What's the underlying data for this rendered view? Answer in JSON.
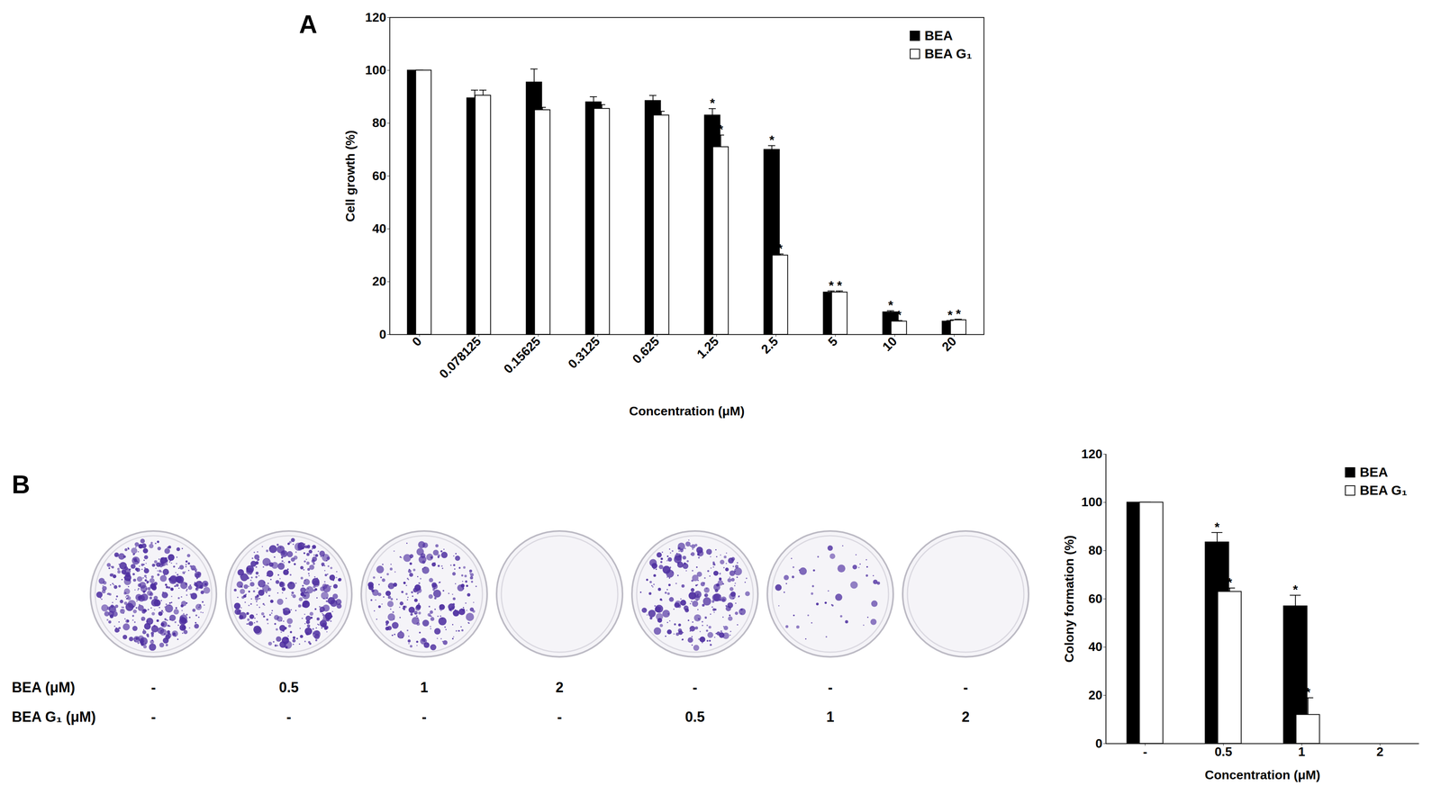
{
  "chart_data": [
    {
      "type": "bar",
      "panel": "A",
      "x_label": "Concentration (μM)",
      "y_label": "Cell growth (%)",
      "categories": [
        "0",
        "0.078125",
        "0.15625",
        "0.3125",
        "0.625",
        "1.25",
        "2.5",
        "5",
        "10",
        "20"
      ],
      "series": [
        {
          "name": "BEA",
          "color": "#000000",
          "values": [
            100,
            89.5,
            95.5,
            88,
            88.5,
            83,
            70,
            16,
            8.5,
            5
          ],
          "errors": [
            0,
            3,
            5,
            2,
            2,
            2.5,
            1.5,
            0.5,
            0.5,
            0.3
          ],
          "significant": [
            false,
            false,
            false,
            false,
            false,
            true,
            true,
            true,
            true,
            true
          ]
        },
        {
          "name": "BEA G₁",
          "color": "#ffffff",
          "values": [
            100,
            90.5,
            85,
            85.5,
            83,
            71,
            30,
            16,
            5,
            5.5
          ],
          "errors": [
            0,
            2,
            1,
            1.5,
            1.5,
            4.5,
            0.5,
            0.5,
            0.3,
            0.3
          ],
          "significant": [
            false,
            false,
            false,
            false,
            false,
            true,
            true,
            true,
            true,
            true
          ]
        }
      ],
      "annotation": "*",
      "ylim": [
        0,
        120
      ],
      "yticks": [
        0,
        20,
        40,
        60,
        80,
        100,
        120
      ],
      "legend": "top-right"
    },
    {
      "type": "bar",
      "panel": "B",
      "x_label": "Concentration (μM)",
      "y_label": "Colony formation (%)",
      "categories": [
        "-",
        "0.5",
        "1",
        "2"
      ],
      "series": [
        {
          "name": "BEA",
          "color": "#000000",
          "values": [
            100,
            83.5,
            57,
            0
          ],
          "errors": [
            0,
            4,
            4.5,
            0
          ],
          "significant": [
            false,
            true,
            true,
            false
          ]
        },
        {
          "name": "BEA G₁",
          "color": "#ffffff",
          "values": [
            100,
            63,
            12,
            0
          ],
          "errors": [
            0,
            1.5,
            7,
            0
          ],
          "significant": [
            false,
            true,
            true,
            false
          ]
        }
      ],
      "annotation": "*",
      "ylim": [
        0,
        120
      ],
      "yticks": [
        0,
        20,
        40,
        60,
        80,
        100,
        120
      ],
      "legend": "top-right"
    }
  ],
  "colony_plates": {
    "rows": [
      {
        "label": "BEA (μM)",
        "values": [
          "-",
          "0.5",
          "1",
          "2",
          "-",
          "-",
          "-"
        ]
      },
      {
        "label": "BEA G₁ (μM)",
        "values": [
          "-",
          "-",
          "-",
          "-",
          "0.5",
          "1",
          "2"
        ]
      }
    ]
  }
}
